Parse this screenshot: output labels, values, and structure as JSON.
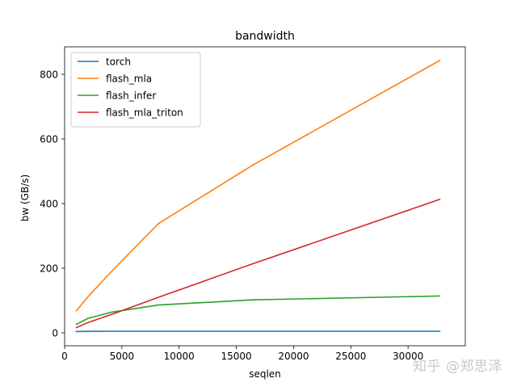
{
  "chart_data": {
    "type": "line",
    "title": "bandwidth",
    "xlabel": "seqlen",
    "ylabel": "bw (GB/s)",
    "xlim": [
      0,
      35000
    ],
    "ylim": [
      -40,
      885
    ],
    "xticks": [
      0,
      5000,
      10000,
      15000,
      20000,
      25000,
      30000
    ],
    "yticks": [
      0,
      200,
      400,
      600,
      800
    ],
    "grid": false,
    "legend_position": "top-left",
    "series": [
      {
        "name": "torch",
        "color": "#1f77b4",
        "x": [
          1024,
          2048,
          4096,
          8192,
          16384,
          32768
        ],
        "y": [
          4,
          4.5,
          5,
          5,
          5,
          5
        ]
      },
      {
        "name": "flash_mla",
        "color": "#ff7f0e",
        "x": [
          1024,
          2048,
          4096,
          8192,
          16384,
          32768
        ],
        "y": [
          68,
          112,
          190,
          338,
          518,
          843
        ]
      },
      {
        "name": "flash_infer",
        "color": "#2ca02c",
        "x": [
          1024,
          2048,
          4096,
          8192,
          16384,
          32768
        ],
        "y": [
          26,
          45,
          64,
          86,
          102,
          114
        ]
      },
      {
        "name": "flash_mla_triton",
        "color": "#d62728",
        "x": [
          1024,
          2048,
          4096,
          8192,
          16384,
          32768
        ],
        "y": [
          16,
          32,
          57,
          110,
          213,
          413
        ]
      }
    ]
  },
  "watermark": "知乎 @郑思泽"
}
